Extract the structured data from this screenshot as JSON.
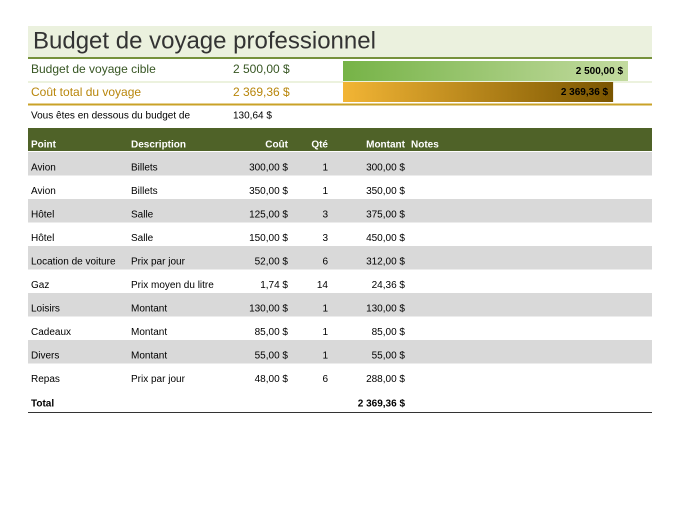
{
  "header": {
    "title": "Budget de voyage professionnel"
  },
  "summary": {
    "target": {
      "label": "Budget de voyage cible",
      "amount": {
        "value": 2500,
        "label": "2 500,00 $"
      }
    },
    "total": {
      "label": "Coût total du voyage",
      "amount": {
        "value": 2369.36,
        "label": "2 369,36 $"
      }
    },
    "difference": {
      "label": "Vous êtes en dessous du budget de",
      "amount": "130,64 $"
    }
  },
  "table": {
    "columns": [
      "Point",
      "Description",
      "Coût",
      "Qté",
      "Montant",
      "Notes"
    ],
    "rows": [
      [
        "Avion",
        "Billets",
        "300,00 $",
        "1",
        "300,00 $"
      ],
      [
        "Avion",
        "Billets",
        "350,00 $",
        "1",
        "350,00 $"
      ],
      [
        "Hôtel",
        "Salle",
        "125,00 $",
        "3",
        "375,00 $"
      ],
      [
        "Hôtel",
        "Salle",
        "150,00 $",
        "3",
        "450,00 $"
      ],
      [
        "Location de voiture",
        "Prix par jour",
        "52,00 $",
        "6",
        "312,00 $"
      ],
      [
        "Gaz",
        "Prix moyen du litre",
        "1,74 $",
        "14",
        "24,36 $"
      ],
      [
        "Loisirs",
        "Montant",
        "130,00 $",
        "1",
        "130,00 $"
      ],
      [
        "Cadeaux",
        "Montant",
        "85,00 $",
        "1",
        "85,00 $"
      ],
      [
        "Divers",
        "Montant",
        "55,00 $",
        "1",
        "55,00 $"
      ],
      [
        "Repas",
        "Prix par jour",
        "48,00 $",
        "6",
        "288,00 $"
      ]
    ],
    "total": {
      "label": "Total",
      "amount": "2 369,36 $"
    }
  }
}
